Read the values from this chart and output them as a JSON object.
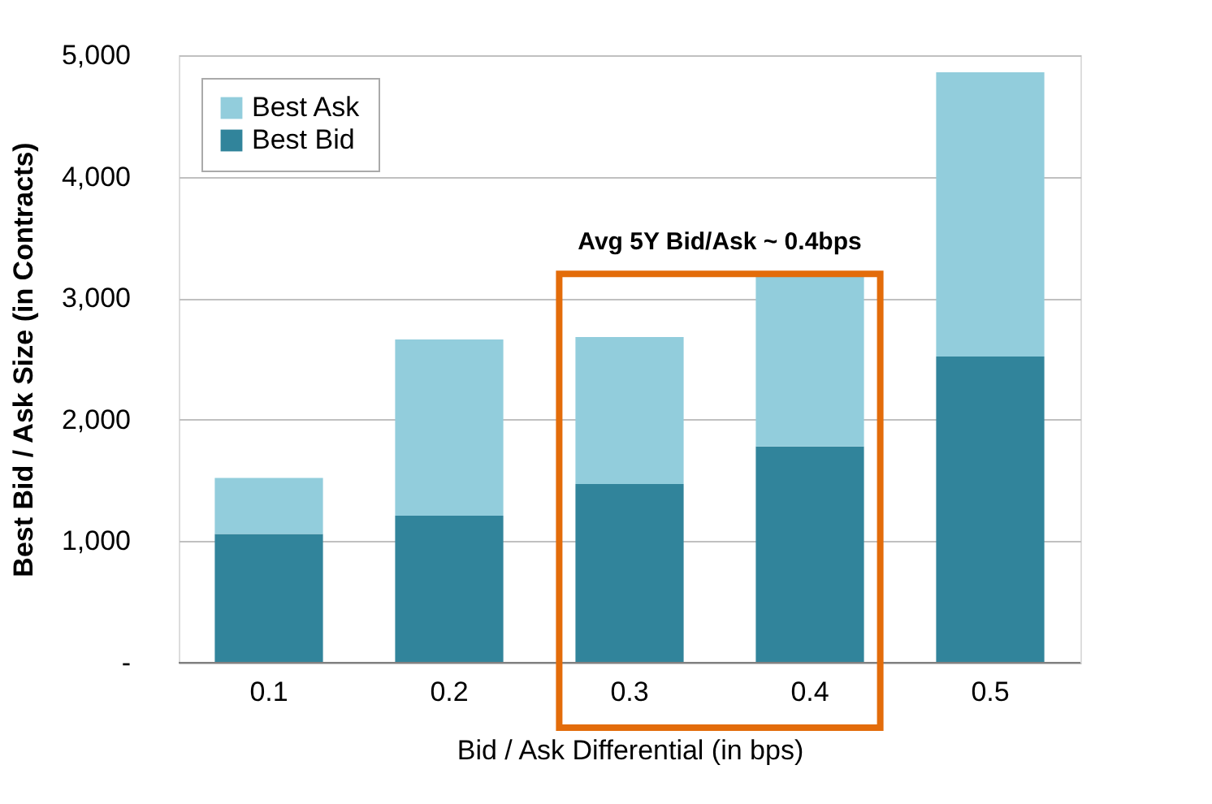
{
  "chart_data": {
    "type": "bar",
    "stacked": true,
    "xlabel": "Bid / Ask Differential (in bps)",
    "ylabel": "Best Bid / Ask Size (in Contracts)",
    "categories": [
      "0.1",
      "0.2",
      "0.3",
      "0.4",
      "0.5"
    ],
    "series": [
      {
        "name": "Best Bid",
        "color": "#31849b",
        "values": [
          1060,
          1210,
          1470,
          1780,
          2520
        ]
      },
      {
        "name": "Best Ask",
        "color": "#92cddc",
        "values": [
          460,
          1450,
          1210,
          1400,
          2340
        ]
      }
    ],
    "ylim": [
      0,
      5000
    ],
    "yticks": [
      {
        "value": 0,
        "label": "-"
      },
      {
        "value": 1000,
        "label": "1,000"
      },
      {
        "value": 2000,
        "label": "2,000"
      },
      {
        "value": 3000,
        "label": "3,000"
      },
      {
        "value": 4000,
        "label": "4,000"
      },
      {
        "value": 5000,
        "label": "5,000"
      }
    ],
    "grid": "y",
    "legend": "top left",
    "annotations": [
      "Avg 5Y Bid/Ask ~ 0.4bps"
    ]
  }
}
